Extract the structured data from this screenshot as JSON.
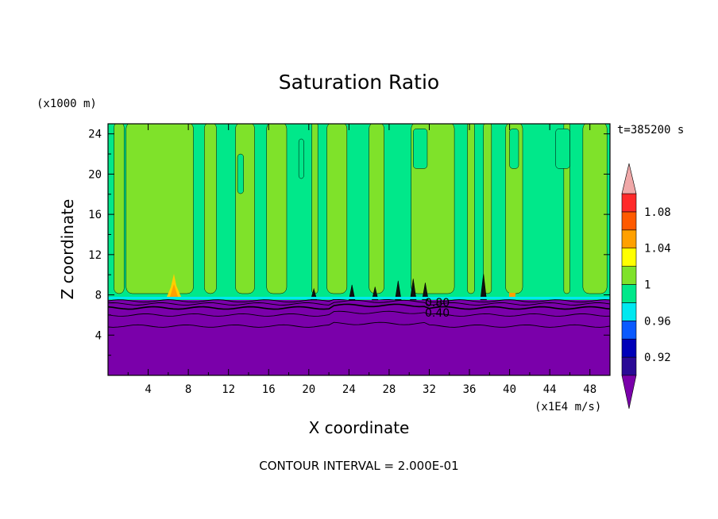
{
  "chart_data": {
    "type": "contour",
    "title": "Saturation Ratio",
    "xlabel": "X coordinate",
    "ylabel": "Z coordinate",
    "x_units": "(x1E4 m/s)",
    "y_units": "(x1000 m)",
    "time_label": "t=385200 s",
    "footer": "CONTOUR INTERVAL = 2.000E-01",
    "xlim": [
      0,
      50
    ],
    "ylim": [
      0,
      25
    ],
    "x_ticks": [
      "4",
      "8",
      "12",
      "16",
      "20",
      "24",
      "28",
      "32",
      "36",
      "40",
      "44",
      "48"
    ],
    "y_ticks": [
      "4",
      "8",
      "12",
      "16",
      "20",
      "24"
    ],
    "colorbar": {
      "levels": [
        0.9,
        0.92,
        0.94,
        0.96,
        0.98,
        1.0,
        1.02,
        1.04,
        1.06,
        1.08,
        1.1
      ],
      "colors": [
        "#2a0a96",
        "#0000b8",
        "#0a5aff",
        "#00e8f0",
        "#00e88a",
        "#7fe22a",
        "#ffff00",
        "#ffa000",
        "#ff5a00",
        "#ff2a2a"
      ],
      "under_color": "#7a00aa",
      "over_color": "#f0a8a8",
      "labels": [
        "1.08",
        "1.04",
        "1",
        "0.96",
        "0.92"
      ]
    },
    "contour_labels": [
      "0.80",
      "0.40"
    ],
    "regions": {
      "upper_green": "#00e88a",
      "upper_yellowgreen": "#7fe22a",
      "lower_purple": "#7a00aa",
      "boundary_z": 7.5
    }
  }
}
